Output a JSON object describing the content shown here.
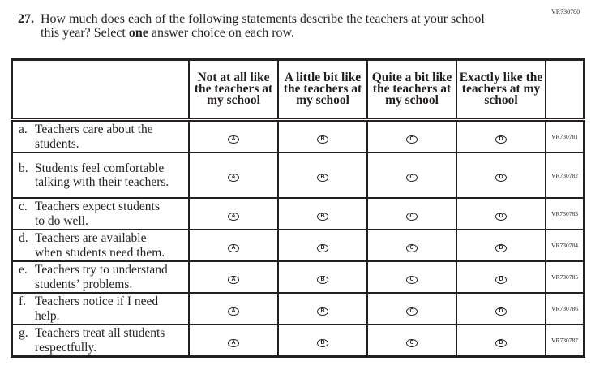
{
  "form_code": "VR730780",
  "question": {
    "number": "27.",
    "line1": "How much does each of the following statements describe the teachers at your school",
    "line2_pre": "this year? Select ",
    "line2_bold": "one",
    "line2_post": " answer choice on each row."
  },
  "columns": [
    "Not at all like the teachers at my school",
    "A little bit like the teachers at my school",
    "Quite a bit like the teachers at my school",
    "Exactly like the teachers at my school"
  ],
  "option_letters": [
    "A",
    "B",
    "C",
    "D"
  ],
  "rows": [
    {
      "letter": "a.",
      "first": "Teachers care about the",
      "rest": "students.",
      "code": "VR730781",
      "height": 38
    },
    {
      "letter": "b.",
      "first": "Students feel comfortable",
      "rest": "talking with their teachers.",
      "code": "VR730782",
      "height": 56
    },
    {
      "letter": "c.",
      "first": "Teachers expect students",
      "rest": "to do well.",
      "code": "VR730783",
      "height": 38
    },
    {
      "letter": "d.",
      "first": "Teachers are available",
      "rest": "when students need them.",
      "code": "VR730784",
      "height": 38
    },
    {
      "letter": "e.",
      "first": "Teachers try to understand",
      "rest": "students’ problems.",
      "code": "VR730785",
      "height": 38
    },
    {
      "letter": "f.",
      "first": "Teachers notice if I need",
      "rest": "help.",
      "code": "VR730786",
      "height": 38
    },
    {
      "letter": "g.",
      "first": "Teachers treat all students",
      "rest": "respectfully.",
      "code": "VR730787",
      "height": 38
    }
  ]
}
